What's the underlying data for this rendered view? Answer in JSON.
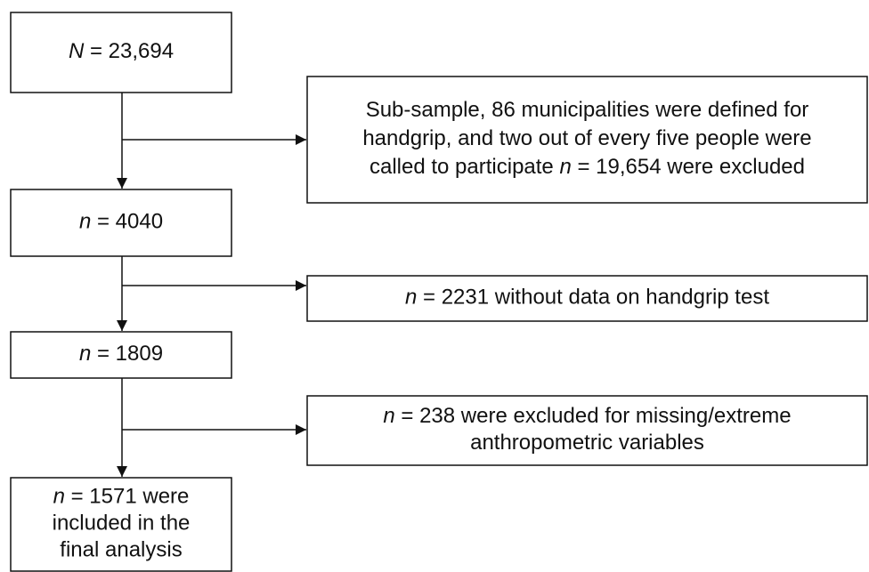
{
  "nodes": [
    {
      "lines": [
        [
          {
            "text": "N",
            "italic": true
          },
          {
            "text": " = 23,694"
          }
        ]
      ]
    },
    {
      "lines": [
        [
          {
            "text": "Sub-sample, 86 municipalities were defined for"
          }
        ],
        [
          {
            "text": "handgrip, and two out of every five people were"
          }
        ],
        [
          {
            "text": "called to participate "
          },
          {
            "text": "n",
            "italic": true
          },
          {
            "text": " = 19,654 were excluded"
          }
        ]
      ]
    },
    {
      "lines": [
        [
          {
            "text": "n",
            "italic": true
          },
          {
            "text": " = 4040"
          }
        ]
      ]
    },
    {
      "lines": [
        [
          {
            "text": "n",
            "italic": true
          },
          {
            "text": " = 2231 without data on handgrip test"
          }
        ]
      ]
    },
    {
      "lines": [
        [
          {
            "text": "n",
            "italic": true
          },
          {
            "text": " = 1809"
          }
        ]
      ]
    },
    {
      "lines": [
        [
          {
            "text": "n",
            "italic": true
          },
          {
            "text": " = 238 were excluded for missing/extreme"
          }
        ],
        [
          {
            "text": "anthropometric variables"
          }
        ]
      ]
    },
    {
      "lines": [
        [
          {
            "text": "n",
            "italic": true
          },
          {
            "text": " = 1571 were"
          }
        ],
        [
          {
            "text": "included in the"
          }
        ],
        [
          {
            "text": "final analysis"
          }
        ]
      ]
    }
  ]
}
